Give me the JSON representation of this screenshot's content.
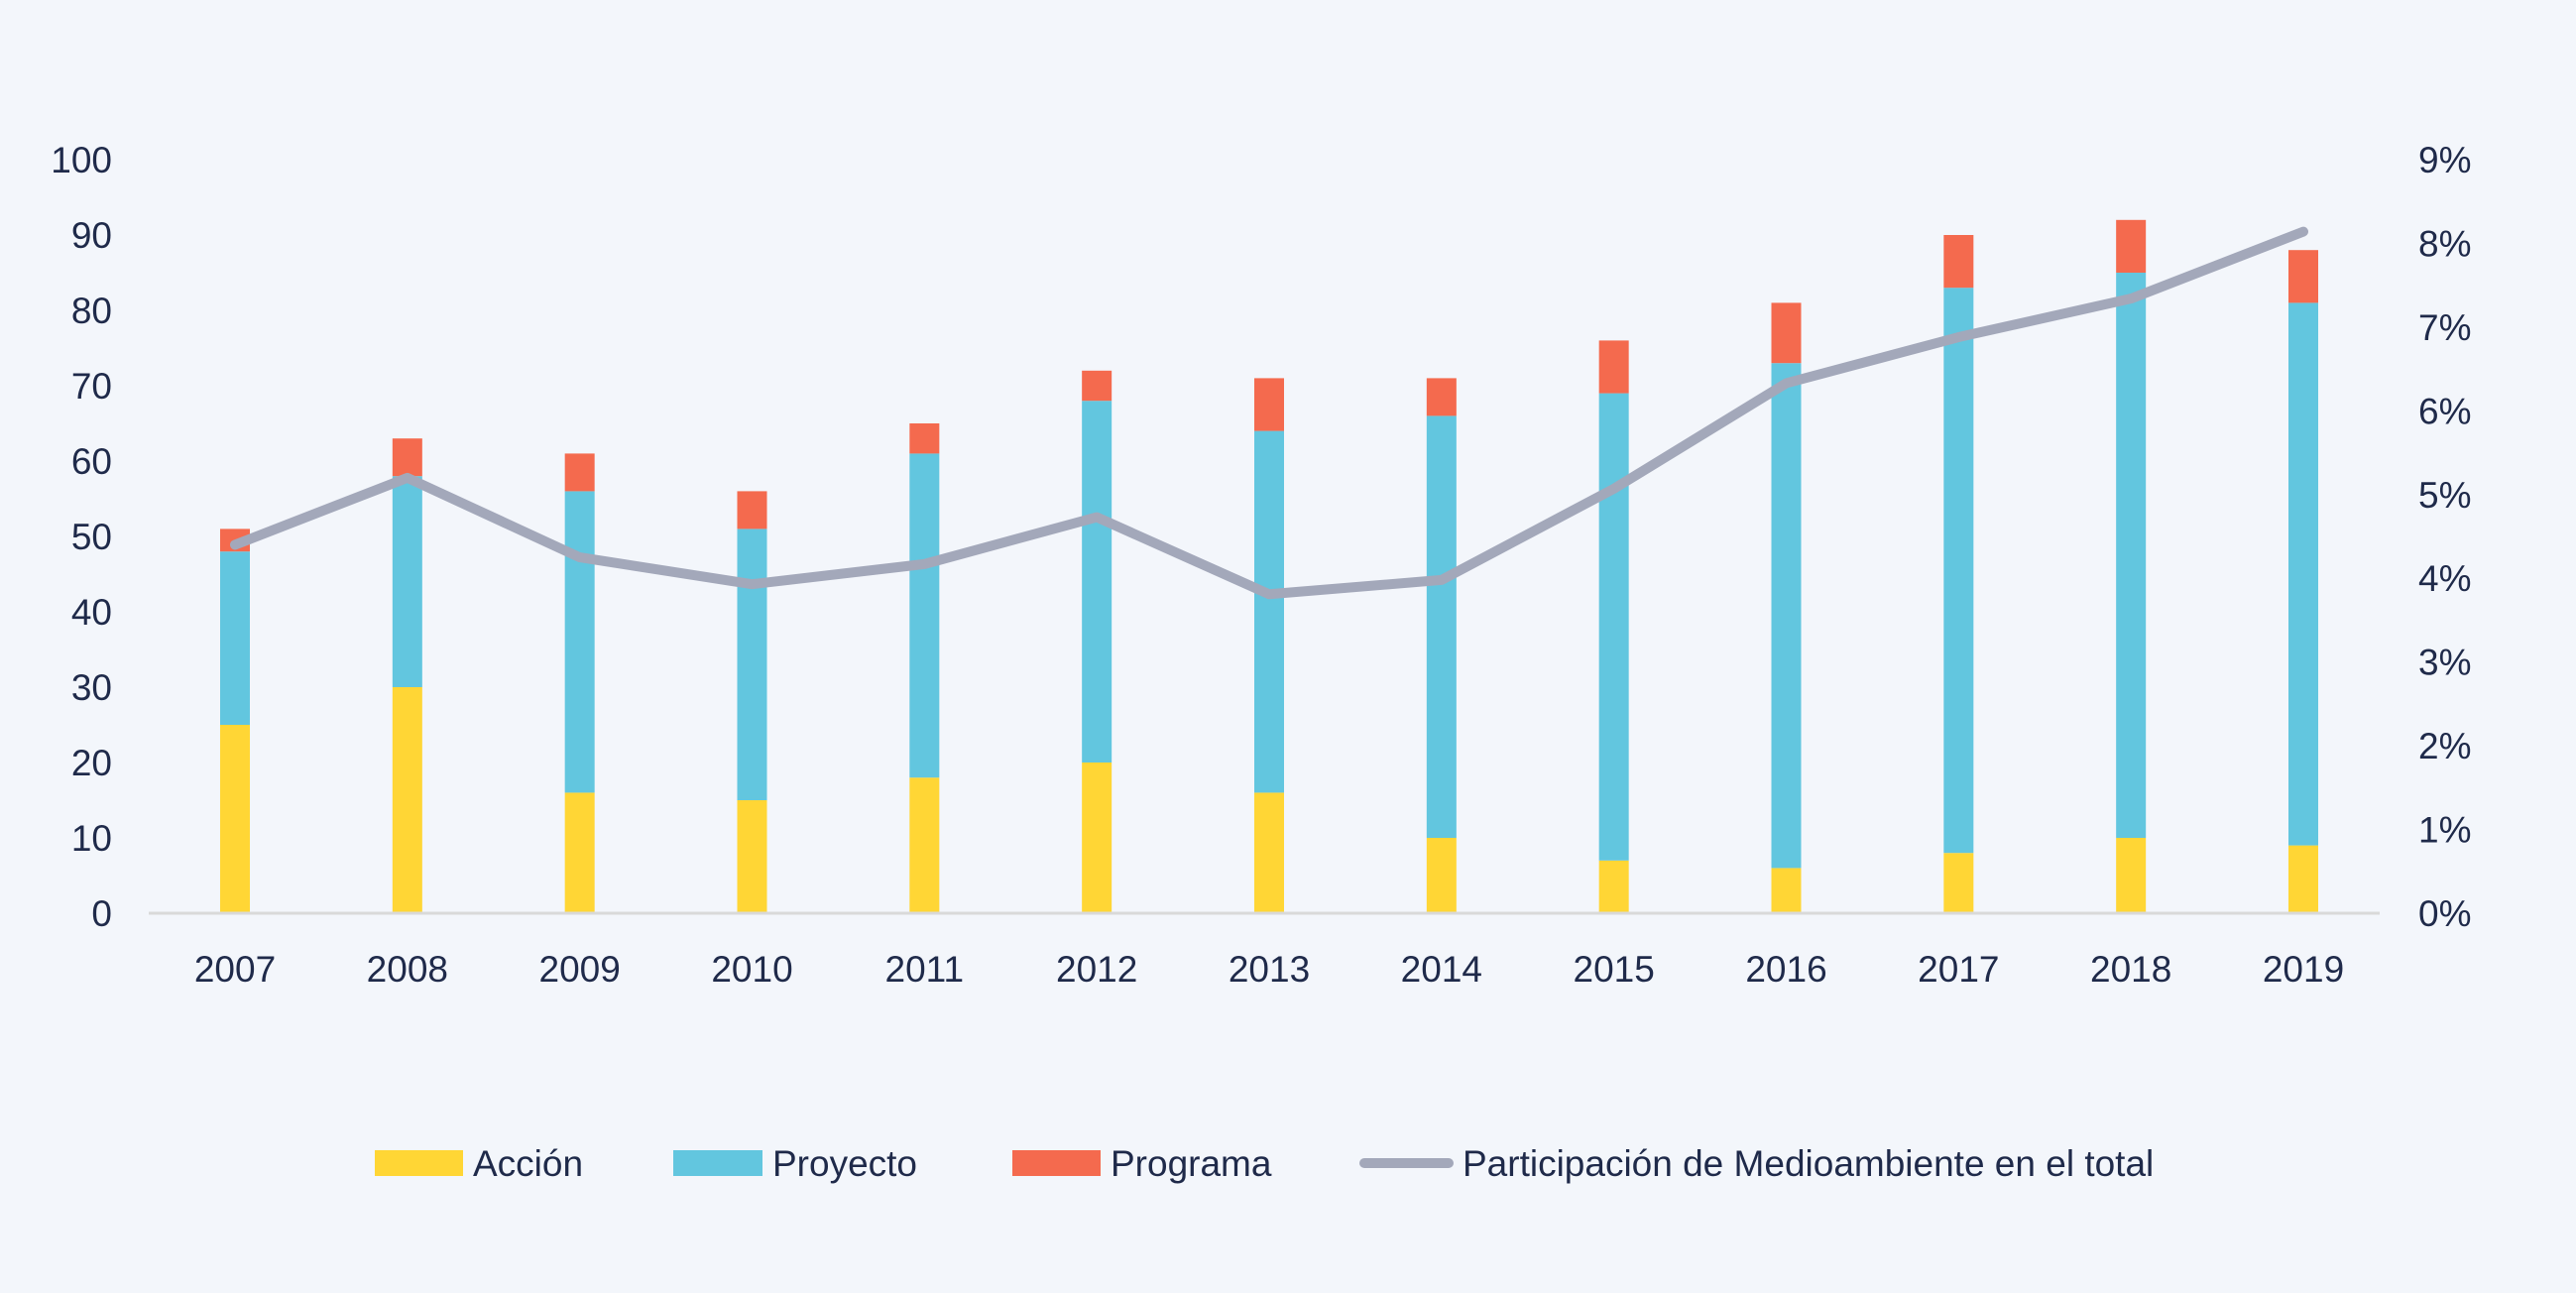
{
  "chart_data": {
    "type": "bar",
    "stacked": true,
    "categories": [
      "2007",
      "2008",
      "2009",
      "2010",
      "2011",
      "2012",
      "2013",
      "2014",
      "2015",
      "2016",
      "2017",
      "2018",
      "2019"
    ],
    "series": [
      {
        "name": "Acción",
        "type": "bar",
        "axis": "left",
        "color": "#ffd635",
        "values": [
          25,
          30,
          16,
          15,
          18,
          20,
          16,
          10,
          7,
          6,
          8,
          10,
          9
        ]
      },
      {
        "name": "Proyecto",
        "type": "bar",
        "axis": "left",
        "color": "#62c6df",
        "values": [
          23,
          28,
          40,
          36,
          43,
          48,
          48,
          56,
          62,
          67,
          75,
          75,
          72
        ]
      },
      {
        "name": "Programa",
        "type": "bar",
        "axis": "left",
        "color": "#f46a4e",
        "values": [
          3,
          5,
          5,
          5,
          4,
          4,
          7,
          5,
          7,
          8,
          7,
          7,
          7
        ]
      },
      {
        "name": "Participación de Medioambiente en el total",
        "type": "line",
        "axis": "right",
        "color": "#a3a8ba",
        "values": [
          4.4,
          5.2,
          4.25,
          3.93,
          4.17,
          4.73,
          3.81,
          3.98,
          5.07,
          6.33,
          6.88,
          7.34,
          8.14
        ]
      }
    ],
    "y_left": {
      "range": [
        0,
        100
      ],
      "ticks": [
        "0",
        "10",
        "20",
        "30",
        "40",
        "50",
        "60",
        "70",
        "80",
        "90",
        "100"
      ]
    },
    "y_right": {
      "range": [
        0,
        9
      ],
      "unit": "%",
      "ticks": [
        "0%",
        "1%",
        "2%",
        "3%",
        "4%",
        "5%",
        "6%",
        "7%",
        "8%",
        "9%"
      ]
    },
    "title": "",
    "xlabel": "",
    "ylabel": "",
    "grid": false,
    "legend": "bottom"
  }
}
